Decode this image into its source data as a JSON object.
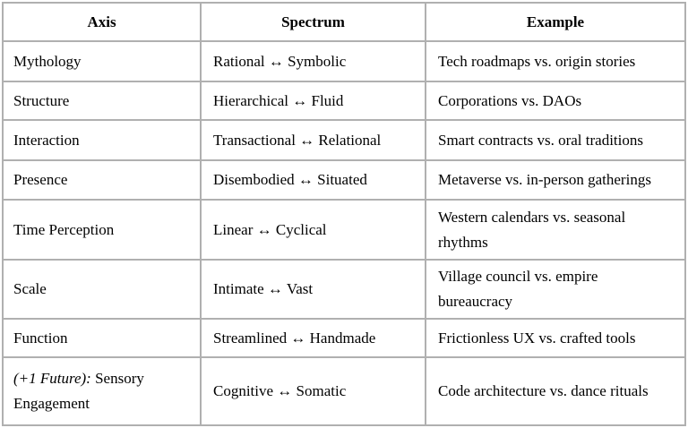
{
  "table": {
    "columns": [
      "Axis",
      "Spectrum",
      "Example"
    ],
    "rows": [
      {
        "axis": "Mythology",
        "spectrum": "Rational ↔ Symbolic",
        "example": "Tech roadmaps vs. origin stories"
      },
      {
        "axis": "Structure",
        "spectrum": "Hierarchical ↔ Fluid",
        "example": "Corporations vs. DAOs"
      },
      {
        "axis": "Interaction",
        "spectrum": "Transactional ↔ Relational",
        "example": "Smart contracts vs. oral traditions"
      },
      {
        "axis": "Presence",
        "spectrum": "Disembodied ↔ Situated",
        "example": "Metaverse vs. in-person gatherings"
      },
      {
        "axis": "Time Perception",
        "spectrum": "Linear ↔ Cyclical",
        "example": "Western calendars vs. seasonal rhythms"
      },
      {
        "axis": "Scale",
        "spectrum": "Intimate ↔ Vast",
        "example": "Village council vs. empire bureaucracy"
      },
      {
        "axis": "Function",
        "spectrum": "Streamlined ↔ Handmade",
        "example": "Frictionless UX vs. crafted tools"
      },
      {
        "axis_italic": "(+1 Future):",
        "axis_rest": " Sensory Engagement",
        "spectrum": "Cognitive ↔ Somatic",
        "example": "Code architecture vs. dance rituals"
      }
    ],
    "colors": {
      "border": "#b0b0b0",
      "text": "#000000",
      "background": "#ffffff"
    }
  }
}
